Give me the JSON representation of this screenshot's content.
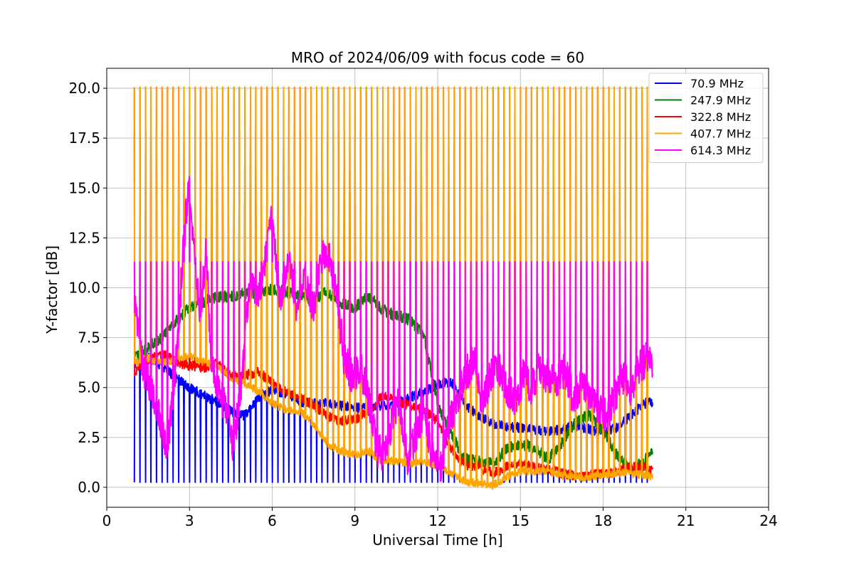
{
  "chart_data": {
    "type": "line",
    "title": "MRO of 2024/06/09 with focus code = 60",
    "xlabel": "Universal Time [h]",
    "ylabel": "Y-factor [dB]",
    "xlim": [
      0,
      24
    ],
    "ylim": [
      -1.0,
      21.0
    ],
    "xticks": [
      0,
      3,
      6,
      9,
      12,
      15,
      18,
      21,
      24
    ],
    "xtick_labels": [
      "0",
      "3",
      "6",
      "9",
      "12",
      "15",
      "18",
      "21",
      "24"
    ],
    "yticks": [
      0.0,
      2.5,
      5.0,
      7.5,
      10.0,
      12.5,
      15.0,
      17.5,
      20.0
    ],
    "ytick_labels": [
      "0.0",
      "2.5",
      "5.0",
      "7.5",
      "10.0",
      "12.5",
      "15.0",
      "17.5",
      "20.0"
    ],
    "grid": true,
    "legend_position": "upper right",
    "calibration_cycle": {
      "start_h": 1.0,
      "end_h": 19.8,
      "period_h": 0.2,
      "calibration_levels": {
        "70.9 MHz": 0.25,
        "247.9 MHz": 17.8,
        "322.8 MHz": 20.05,
        "407.7 MHz": 20.05,
        "614.3 MHz": 11.3
      }
    },
    "series": [
      {
        "name": " 70.9 MHz",
        "color": "#0000ff",
        "x": [
          1.0,
          1.5,
          2.0,
          2.5,
          3.0,
          3.5,
          4.0,
          4.5,
          5.0,
          5.5,
          6.0,
          6.5,
          7.0,
          7.5,
          8.0,
          8.5,
          9.0,
          9.5,
          10.0,
          10.5,
          11.0,
          11.5,
          12.0,
          12.5,
          13.0,
          13.5,
          14.0,
          14.5,
          15.0,
          15.5,
          16.0,
          16.5,
          17.0,
          17.5,
          18.0,
          18.5,
          19.0,
          19.5,
          19.8
        ],
        "y": [
          6.2,
          6.5,
          6.1,
          5.5,
          5.0,
          4.6,
          4.3,
          3.8,
          3.6,
          4.5,
          4.9,
          4.7,
          4.3,
          4.2,
          4.2,
          4.1,
          4.0,
          4.0,
          4.1,
          4.2,
          4.5,
          4.8,
          5.2,
          5.3,
          4.1,
          3.6,
          3.2,
          3.0,
          3.0,
          2.9,
          2.8,
          2.9,
          3.1,
          2.9,
          2.8,
          3.0,
          3.6,
          4.2,
          4.3
        ]
      },
      {
        "name": "247.9 MHz",
        "color": "#008000",
        "x": [
          1.0,
          1.5,
          2.0,
          2.5,
          3.0,
          3.5,
          4.0,
          4.5,
          5.0,
          5.5,
          6.0,
          6.5,
          7.0,
          7.5,
          8.0,
          8.5,
          9.0,
          9.5,
          10.0,
          10.5,
          11.0,
          11.5,
          12.0,
          12.5,
          13.0,
          13.5,
          14.0,
          14.5,
          15.0,
          15.5,
          16.0,
          16.5,
          17.0,
          17.5,
          18.0,
          18.5,
          19.0,
          19.5,
          19.8
        ],
        "y": [
          6.5,
          7.0,
          7.5,
          8.3,
          9.0,
          9.3,
          9.5,
          9.6,
          9.7,
          9.8,
          9.9,
          9.8,
          9.6,
          9.4,
          9.8,
          9.2,
          9.0,
          9.6,
          8.9,
          8.6,
          8.4,
          7.6,
          4.2,
          2.6,
          1.4,
          1.3,
          1.2,
          1.9,
          2.2,
          2.0,
          1.4,
          2.2,
          3.3,
          3.6,
          2.8,
          1.6,
          0.9,
          1.3,
          2.0
        ]
      },
      {
        "name": "322.8 MHz",
        "color": "#ff0000",
        "x": [
          1.0,
          1.5,
          2.0,
          2.5,
          3.0,
          3.5,
          4.0,
          4.5,
          5.0,
          5.5,
          6.0,
          6.5,
          7.0,
          7.5,
          8.0,
          8.5,
          9.0,
          9.5,
          10.0,
          10.5,
          11.0,
          11.5,
          12.0,
          12.5,
          13.0,
          13.5,
          14.0,
          14.5,
          15.0,
          15.5,
          16.0,
          16.5,
          17.0,
          17.5,
          18.0,
          18.5,
          19.0,
          19.5,
          19.8
        ],
        "y": [
          5.8,
          6.4,
          6.7,
          6.3,
          6.1,
          6.0,
          6.2,
          5.6,
          5.6,
          5.8,
          5.2,
          4.8,
          4.5,
          4.1,
          3.6,
          3.3,
          3.4,
          3.8,
          4.6,
          4.3,
          4.1,
          3.9,
          3.3,
          1.9,
          1.1,
          1.0,
          0.7,
          1.0,
          1.2,
          1.0,
          0.9,
          0.7,
          0.6,
          0.6,
          0.7,
          0.8,
          1.0,
          1.0,
          0.8
        ]
      },
      {
        "name": "407.7 MHz",
        "color": "#ffa500",
        "x": [
          1.0,
          1.5,
          2.0,
          2.5,
          3.0,
          3.5,
          4.0,
          4.5,
          5.0,
          5.5,
          6.0,
          6.5,
          7.0,
          7.5,
          8.0,
          8.5,
          9.0,
          9.5,
          10.0,
          10.5,
          11.0,
          11.5,
          12.0,
          12.5,
          13.0,
          13.5,
          14.0,
          14.5,
          15.0,
          15.5,
          16.0,
          16.5,
          17.0,
          17.5,
          18.0,
          18.5,
          19.0,
          19.5,
          19.8
        ],
        "y": [
          6.2,
          6.5,
          6.2,
          6.4,
          6.6,
          6.3,
          6.1,
          5.5,
          5.2,
          4.8,
          4.2,
          3.9,
          3.8,
          3.2,
          2.2,
          1.8,
          1.6,
          1.8,
          1.3,
          1.3,
          1.2,
          1.3,
          1.1,
          0.7,
          0.3,
          0.2,
          0.1,
          0.5,
          0.8,
          0.8,
          0.8,
          0.6,
          0.5,
          0.5,
          0.6,
          0.7,
          0.7,
          0.6,
          0.5
        ]
      },
      {
        "name": "614.3 MHz",
        "color": "#ff00ff",
        "x": [
          1.0,
          1.3,
          1.6,
          1.9,
          2.2,
          2.5,
          2.8,
          3.0,
          3.2,
          3.4,
          3.6,
          3.8,
          4.0,
          4.3,
          4.6,
          4.9,
          5.2,
          5.5,
          5.8,
          6.0,
          6.3,
          6.6,
          6.9,
          7.2,
          7.5,
          7.8,
          8.0,
          8.3,
          8.6,
          8.9,
          9.2,
          9.5,
          9.8,
          10.0,
          10.3,
          10.6,
          10.9,
          11.2,
          11.5,
          11.8,
          12.1,
          12.4,
          12.7,
          13.0,
          13.3,
          13.6,
          13.9,
          14.2,
          14.5,
          14.8,
          15.1,
          15.4,
          15.7,
          16.0,
          16.3,
          16.6,
          16.9,
          17.2,
          17.5,
          17.8,
          18.1,
          18.4,
          18.7,
          19.0,
          19.3,
          19.6,
          19.8
        ],
        "y": [
          9.5,
          6.0,
          5.0,
          3.5,
          2.0,
          6.0,
          12.5,
          15.5,
          11.0,
          8.5,
          12.0,
          6.0,
          5.0,
          4.0,
          2.0,
          5.5,
          10.5,
          9.5,
          12.0,
          13.5,
          9.0,
          12.0,
          8.5,
          10.5,
          9.0,
          11.5,
          12.0,
          10.0,
          6.5,
          5.5,
          6.0,
          4.5,
          2.0,
          1.5,
          3.0,
          4.5,
          1.5,
          2.5,
          4.0,
          1.5,
          1.0,
          3.0,
          4.5,
          5.5,
          6.5,
          4.0,
          5.5,
          6.0,
          5.0,
          4.5,
          5.5,
          5.0,
          6.0,
          5.5,
          5.0,
          6.0,
          4.5,
          5.0,
          4.5,
          4.0,
          3.5,
          4.5,
          5.5,
          5.0,
          6.0,
          6.5,
          6.0
        ]
      }
    ]
  }
}
